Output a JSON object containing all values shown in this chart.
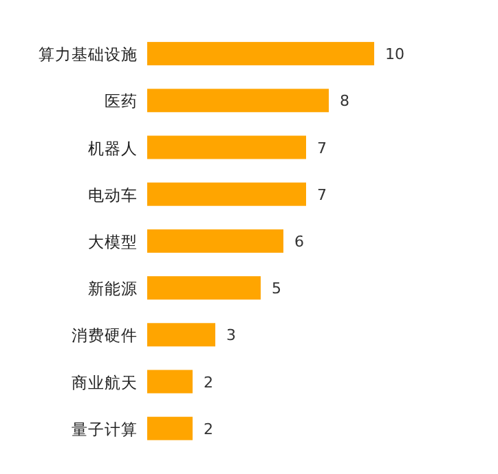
{
  "chart_data": {
    "type": "bar",
    "orientation": "horizontal",
    "categories": [
      "算力基础设施",
      "医药",
      "机器人",
      "电动车",
      "大模型",
      "新能源",
      "消费硬件",
      "商业航天",
      "量子计算"
    ],
    "values": [
      10,
      8,
      7,
      7,
      6,
      5,
      3,
      2,
      2
    ],
    "color": "#ffa500",
    "data_labels": true
  }
}
